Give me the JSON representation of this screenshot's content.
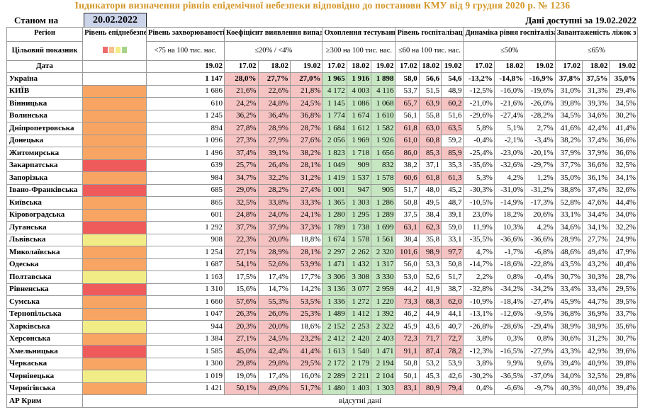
{
  "title": "Індикатори визначення рівнів епідемічної небезпеки відповідно до постанови КМУ від 9 грудня 2020 р. № 1236",
  "as_of_label": "Станом на",
  "as_of_date": "20.02.2022",
  "data_available": "Дані доступні за  19.02.2022",
  "headers": {
    "region": "Регіон",
    "target": "Цільовий показник",
    "date": "Дата",
    "level": "Рівень епіднебезпеки",
    "incidence": "Рівень захворюваності",
    "detection": "Коефіцієнт виявлення випадків інфікування",
    "testing": "Охоплення тестуванням",
    "hosp": "Рівень госпіталізацій",
    "dynamics": "Динаміка рівня госпіталізацій",
    "oxygen": "Завантаженість ліжок з киснем"
  },
  "thresholds": {
    "incidence": "<75 на 100 тис. нас.",
    "detection": "≤20% / <4%",
    "testing": "≥300 на 100 тис. нас.",
    "hosp": "≤60 на 100 тис. нас.",
    "dynamics": "≤50%",
    "oxygen": "≤65%"
  },
  "legend_colors": [
    "#ef6b6b",
    "#f8c08e",
    "#f4ec86",
    "#a6d58a"
  ],
  "dates": {
    "single": "19.02",
    "triple": [
      "17.02",
      "18.02",
      "19.02"
    ]
  },
  "colors": {
    "red": "#ef5b5b",
    "orange": "#f8a462",
    "yellow": "#f1ec85",
    "pink": "#f6c3c3",
    "green": "#c6e6c2"
  },
  "rows": [
    {
      "name": "Україна",
      "level": "",
      "inc": "1 147",
      "det": [
        "28,0%",
        "27,7%",
        "27,0%"
      ],
      "test": [
        "1 965",
        "1 916",
        "1 898"
      ],
      "hosp": [
        "58,0",
        "56,6",
        "54,6"
      ],
      "dyn": [
        "-13,2%",
        "-14,8%",
        "-16,9%"
      ],
      "oxy": [
        "37,8%",
        "37,5%",
        "35,0%"
      ],
      "hl": [
        1,
        1,
        1,
        1,
        1,
        1,
        0,
        0,
        0
      ]
    },
    {
      "name": "КИЇВ",
      "level": "orange",
      "inc": "1 686",
      "det": [
        "21,6%",
        "22,6%",
        "21,8%"
      ],
      "test": [
        "4 172",
        "4 003",
        "4 116"
      ],
      "hosp": [
        "53,7",
        "51,5",
        "48,9"
      ],
      "dyn": [
        "-12,5%",
        "-16,0%",
        "-19,6%"
      ],
      "oxy": [
        "31,0%",
        "31,3%",
        "29,4%"
      ],
      "hl": [
        1,
        1,
        1,
        1,
        1,
        1,
        0,
        0,
        0
      ]
    },
    {
      "name": "Вінницька",
      "level": "orange",
      "inc": "610",
      "det": [
        "24,2%",
        "24,8%",
        "24,5%"
      ],
      "test": [
        "1 145",
        "1 086",
        "1 068"
      ],
      "hosp": [
        "65,7",
        "63,9",
        "60,2"
      ],
      "dyn": [
        "-21,0%",
        "-21,6%",
        "-26,0%"
      ],
      "oxy": [
        "39,8%",
        "39,3%",
        "34,5%"
      ],
      "hl": [
        1,
        1,
        1,
        1,
        1,
        1,
        1,
        1,
        1
      ]
    },
    {
      "name": "Волинська",
      "level": "orange",
      "inc": "1 245",
      "det": [
        "36,2%",
        "36,4%",
        "36,8%"
      ],
      "test": [
        "1 774",
        "1 674",
        "1 610"
      ],
      "hosp": [
        "56,1",
        "55,8",
        "51,6"
      ],
      "dyn": [
        "-29,6%",
        "-27,4%",
        "-28,2%"
      ],
      "oxy": [
        "34,5%",
        "34,6%",
        "30,2%"
      ],
      "hl": [
        1,
        1,
        1,
        1,
        1,
        1,
        0,
        0,
        0
      ]
    },
    {
      "name": "Дніпропетровська",
      "level": "orange",
      "inc": "894",
      "det": [
        "27,8%",
        "28,9%",
        "28,7%"
      ],
      "test": [
        "1 684",
        "1 612",
        "1 582"
      ],
      "hosp": [
        "61,8",
        "63,0",
        "63,5"
      ],
      "dyn": [
        "5,8%",
        "5,1%",
        "2,7%"
      ],
      "oxy": [
        "41,6%",
        "42,4%",
        "41,4%"
      ],
      "hl": [
        1,
        1,
        1,
        1,
        1,
        1,
        1,
        1,
        1
      ]
    },
    {
      "name": "Донецька",
      "level": "orange",
      "inc": "1 096",
      "det": [
        "27,3%",
        "27,9%",
        "27,6%"
      ],
      "test": [
        "2 056",
        "1 969",
        "1 926"
      ],
      "hosp": [
        "61,0",
        "60,8",
        "59,2"
      ],
      "dyn": [
        "-0,4%",
        "-2,1%",
        "-3,4%"
      ],
      "oxy": [
        "38,2%",
        "37,4%",
        "36,6%"
      ],
      "hl": [
        1,
        1,
        1,
        1,
        1,
        1,
        1,
        1,
        0
      ]
    },
    {
      "name": "Житомирська",
      "level": "orange",
      "inc": "1 496",
      "det": [
        "37,4%",
        "39,1%",
        "38,2%"
      ],
      "test": [
        "1 823",
        "1 718",
        "1 656"
      ],
      "hosp": [
        "86,0",
        "85,3",
        "85,9"
      ],
      "dyn": [
        "-25,4%",
        "-23,0%",
        "-20,1%"
      ],
      "oxy": [
        "37,9%",
        "37,9%",
        "36,6%"
      ],
      "hl": [
        1,
        1,
        1,
        1,
        1,
        1,
        1,
        1,
        1
      ]
    },
    {
      "name": "Закарпатська",
      "level": "red",
      "inc": "639",
      "det": [
        "25,7%",
        "26,4%",
        "28,1%"
      ],
      "test": [
        "1 049",
        "909",
        "832"
      ],
      "hosp": [
        "38,2",
        "37,1",
        "35,3"
      ],
      "dyn": [
        "-35,6%",
        "-32,6%",
        "-29,7%"
      ],
      "oxy": [
        "37,7%",
        "36,6%",
        "32,5%"
      ],
      "hl": [
        1,
        1,
        1,
        1,
        1,
        1,
        0,
        0,
        0
      ]
    },
    {
      "name": "Запорізька",
      "level": "orange",
      "inc": "984",
      "det": [
        "34,7%",
        "32,2%",
        "31,2%"
      ],
      "test": [
        "1 419",
        "1 537",
        "1 578"
      ],
      "hosp": [
        "60,6",
        "61,8",
        "61,3"
      ],
      "dyn": [
        "5,3%",
        "4,2%",
        "1,2%"
      ],
      "oxy": [
        "35,0%",
        "36,1%",
        "34,1%"
      ],
      "hl": [
        1,
        1,
        1,
        1,
        1,
        1,
        1,
        1,
        1
      ]
    },
    {
      "name": "Івано-Франківська",
      "level": "red",
      "inc": "685",
      "det": [
        "29,0%",
        "28,2%",
        "27,4%"
      ],
      "test": [
        "1 001",
        "947",
        "905"
      ],
      "hosp": [
        "51,7",
        "48,0",
        "45,2"
      ],
      "dyn": [
        "-30,3%",
        "-31,0%",
        "-31,2%"
      ],
      "oxy": [
        "38,8%",
        "37,4%",
        "32,6%"
      ],
      "hl": [
        1,
        1,
        1,
        1,
        1,
        1,
        0,
        0,
        0
      ]
    },
    {
      "name": "Київська",
      "level": "orange",
      "inc": "865",
      "det": [
        "32,5%",
        "33,8%",
        "33,3%"
      ],
      "test": [
        "1 365",
        "1 303",
        "1 286"
      ],
      "hosp": [
        "50,8",
        "49,5",
        "48,7"
      ],
      "dyn": [
        "-10,5%",
        "-14,9%",
        "-17,3%"
      ],
      "oxy": [
        "52,8%",
        "47,6%",
        "44,4%"
      ],
      "hl": [
        1,
        1,
        1,
        1,
        1,
        1,
        0,
        0,
        0
      ]
    },
    {
      "name": "Кіровоградська",
      "level": "orange",
      "inc": "601",
      "det": [
        "24,8%",
        "24,0%",
        "24,1%"
      ],
      "test": [
        "1 280",
        "1 295",
        "1 289"
      ],
      "hosp": [
        "37,5",
        "38,4",
        "39,1"
      ],
      "dyn": [
        "23,0%",
        "18,2%",
        "20,6%"
      ],
      "oxy": [
        "33,1%",
        "34,4%",
        "34,0%"
      ],
      "hl": [
        1,
        1,
        1,
        1,
        1,
        1,
        0,
        0,
        0
      ]
    },
    {
      "name": "Луганська",
      "level": "red",
      "inc": "1 292",
      "det": [
        "37,7%",
        "37,9%",
        "37,3%"
      ],
      "test": [
        "1 789",
        "1 738",
        "1 699"
      ],
      "hosp": [
        "63,1",
        "62,3",
        "59,0"
      ],
      "dyn": [
        "11,9%",
        "10,3%",
        "4,2%"
      ],
      "oxy": [
        "34,6%",
        "34,1%",
        "32,2%"
      ],
      "hl": [
        1,
        1,
        1,
        1,
        1,
        1,
        1,
        1,
        0
      ]
    },
    {
      "name": "Львівська",
      "level": "yellow",
      "inc": "908",
      "det": [
        "22,3%",
        "20,0%",
        "18,8%"
      ],
      "test": [
        "1 674",
        "1 578",
        "1 561"
      ],
      "hosp": [
        "38,4",
        "35,8",
        "33,1"
      ],
      "dyn": [
        "-35,5%",
        "-36,6%",
        "-36,6%"
      ],
      "oxy": [
        "28,9%",
        "27,7%",
        "24,9%"
      ],
      "hl": [
        1,
        1,
        0,
        1,
        1,
        1,
        0,
        0,
        0
      ]
    },
    {
      "name": "Миколаївська",
      "level": "orange",
      "inc": "1 254",
      "det": [
        "27,1%",
        "28,9%",
        "28,1%"
      ],
      "test": [
        "2 297",
        "2 262",
        "2 320"
      ],
      "hosp": [
        "101,6",
        "98,9",
        "97,7"
      ],
      "dyn": [
        "4,7%",
        "-1,7%",
        "-6,8%"
      ],
      "oxy": [
        "48,6%",
        "49,4%",
        "47,9%"
      ],
      "hl": [
        1,
        1,
        1,
        1,
        1,
        1,
        1,
        1,
        1
      ]
    },
    {
      "name": "Одеська",
      "level": "orange",
      "inc": "1 687",
      "det": [
        "54,1%",
        "52,6%",
        "53,9%"
      ],
      "test": [
        "1 471",
        "1 432",
        "1 317"
      ],
      "hosp": [
        "56,0",
        "53,3",
        "50,8"
      ],
      "dyn": [
        "-14,7%",
        "-18,6%",
        "-22,8%"
      ],
      "oxy": [
        "43,5%",
        "43,2%",
        "40,4%"
      ],
      "hl": [
        1,
        1,
        1,
        1,
        1,
        1,
        0,
        0,
        0
      ]
    },
    {
      "name": "Полтавська",
      "level": "yellow",
      "inc": "1 163",
      "det": [
        "17,5%",
        "17,4%",
        "17,7%"
      ],
      "test": [
        "3 306",
        "3 308",
        "3 330"
      ],
      "hosp": [
        "53,0",
        "52,6",
        "51,7"
      ],
      "dyn": [
        "2,2%",
        "0,8%",
        "-0,4%"
      ],
      "oxy": [
        "30,7%",
        "30,3%",
        "28,7%"
      ],
      "hl": [
        0,
        0,
        0,
        1,
        1,
        1,
        0,
        0,
        0
      ]
    },
    {
      "name": "Рівненська",
      "level": "red",
      "inc": "1 310",
      "det": [
        "15,6%",
        "14,7%",
        "14,2%"
      ],
      "test": [
        "3 136",
        "3 077",
        "2 959"
      ],
      "hosp": [
        "44,2",
        "41,9",
        "38,7"
      ],
      "dyn": [
        "-32,8%",
        "-34,2%",
        "-34,2%"
      ],
      "oxy": [
        "33,4%",
        "33,4%",
        "29,5%"
      ],
      "hl": [
        0,
        0,
        0,
        1,
        1,
        1,
        0,
        0,
        0
      ]
    },
    {
      "name": "Сумська",
      "level": "orange",
      "inc": "1 660",
      "det": [
        "57,6%",
        "55,3%",
        "53,5%"
      ],
      "test": [
        "1 336",
        "1 272",
        "1 220"
      ],
      "hosp": [
        "73,3",
        "68,3",
        "62,0"
      ],
      "dyn": [
        "-10,9%",
        "-18,4%",
        "-27,4%"
      ],
      "oxy": [
        "45,9%",
        "44,7%",
        "39,5%"
      ],
      "hl": [
        1,
        1,
        1,
        1,
        1,
        1,
        1,
        1,
        1
      ]
    },
    {
      "name": "Тернопільська",
      "level": "orange",
      "inc": "1 047",
      "det": [
        "26,3%",
        "26,0%",
        "25,3%"
      ],
      "test": [
        "1 489",
        "1 412",
        "1 392"
      ],
      "hosp": [
        "46,2",
        "44,9",
        "44,1"
      ],
      "dyn": [
        "-13,1%",
        "-12,6%",
        "-9,5%"
      ],
      "oxy": [
        "36,8%",
        "36,9%",
        "33,7%"
      ],
      "hl": [
        1,
        1,
        1,
        1,
        1,
        1,
        0,
        0,
        0
      ]
    },
    {
      "name": "Харківська",
      "level": "yellow",
      "inc": "944",
      "det": [
        "20,3%",
        "20,0%",
        "18,6%"
      ],
      "test": [
        "2 152",
        "2 253",
        "2 322"
      ],
      "hosp": [
        "45,9",
        "43,6",
        "40,7"
      ],
      "dyn": [
        "-26,8%",
        "-28,6%",
        "-29,4%"
      ],
      "oxy": [
        "38,9%",
        "38,9%",
        "35,6%"
      ],
      "hl": [
        1,
        1,
        0,
        1,
        1,
        1,
        0,
        0,
        0
      ]
    },
    {
      "name": "Херсонська",
      "level": "orange",
      "inc": "1 384",
      "det": [
        "27,1%",
        "24,5%",
        "23,2%"
      ],
      "test": [
        "2 412",
        "2 420",
        "2 403"
      ],
      "hosp": [
        "72,3",
        "71,7",
        "72,7"
      ],
      "dyn": [
        "3,8%",
        "0,3%",
        "0,8%"
      ],
      "oxy": [
        "30,6%",
        "31,2%",
        "30,7%"
      ],
      "hl": [
        1,
        1,
        1,
        1,
        1,
        1,
        1,
        1,
        1
      ]
    },
    {
      "name": "Хмельницька",
      "level": "red",
      "inc": "1 585",
      "det": [
        "45,0%",
        "42,4%",
        "41,4%"
      ],
      "test": [
        "1 613",
        "1 540",
        "1 471"
      ],
      "hosp": [
        "91,1",
        "87,4",
        "78,2"
      ],
      "dyn": [
        "-12,3%",
        "-16,5%",
        "-27,9%"
      ],
      "oxy": [
        "43,3%",
        "42,9%",
        "39,6%"
      ],
      "hl": [
        1,
        1,
        1,
        1,
        1,
        1,
        1,
        1,
        1
      ]
    },
    {
      "name": "Черкаська",
      "level": "orange",
      "inc": "1 300",
      "det": [
        "29,8%",
        "29,8%",
        "29,5%"
      ],
      "test": [
        "2 172",
        "2 179",
        "2 194"
      ],
      "hosp": [
        "50,8",
        "53,2",
        "53,9"
      ],
      "dyn": [
        "3,8%",
        "9,9%",
        "9,6%"
      ],
      "oxy": [
        "39,4%",
        "40,9%",
        "39,8%"
      ],
      "hl": [
        1,
        1,
        1,
        1,
        1,
        1,
        0,
        0,
        0
      ]
    },
    {
      "name": "Чернівецька",
      "level": "yellow",
      "inc": "1 019",
      "det": [
        "19,0%",
        "17,4%",
        "16,0%"
      ],
      "test": [
        "2 289",
        "2 211",
        "2 104"
      ],
      "hosp": [
        "50,1",
        "45,3",
        "42,6"
      ],
      "dyn": [
        "-30,2%",
        "-36,5%",
        "-37,0%"
      ],
      "oxy": [
        "34,0%",
        "32,5%",
        "29,8%"
      ],
      "hl": [
        0,
        0,
        0,
        1,
        1,
        1,
        0,
        0,
        0
      ]
    },
    {
      "name": "Чернігівська",
      "level": "orange",
      "inc": "1 421",
      "det": [
        "50,1%",
        "49,0%",
        "51,7%"
      ],
      "test": [
        "1 480",
        "1 403",
        "1 303"
      ],
      "hosp": [
        "83,1",
        "80,9",
        "79,4"
      ],
      "dyn": [
        "0,4%",
        "-6,6%",
        "-9,7%"
      ],
      "oxy": [
        "40,3%",
        "40,0%",
        "39,4%"
      ],
      "hl": [
        1,
        1,
        1,
        1,
        1,
        1,
        1,
        1,
        1
      ]
    }
  ],
  "crimea": {
    "name": "АР Крим",
    "note": "відсутні дані"
  }
}
